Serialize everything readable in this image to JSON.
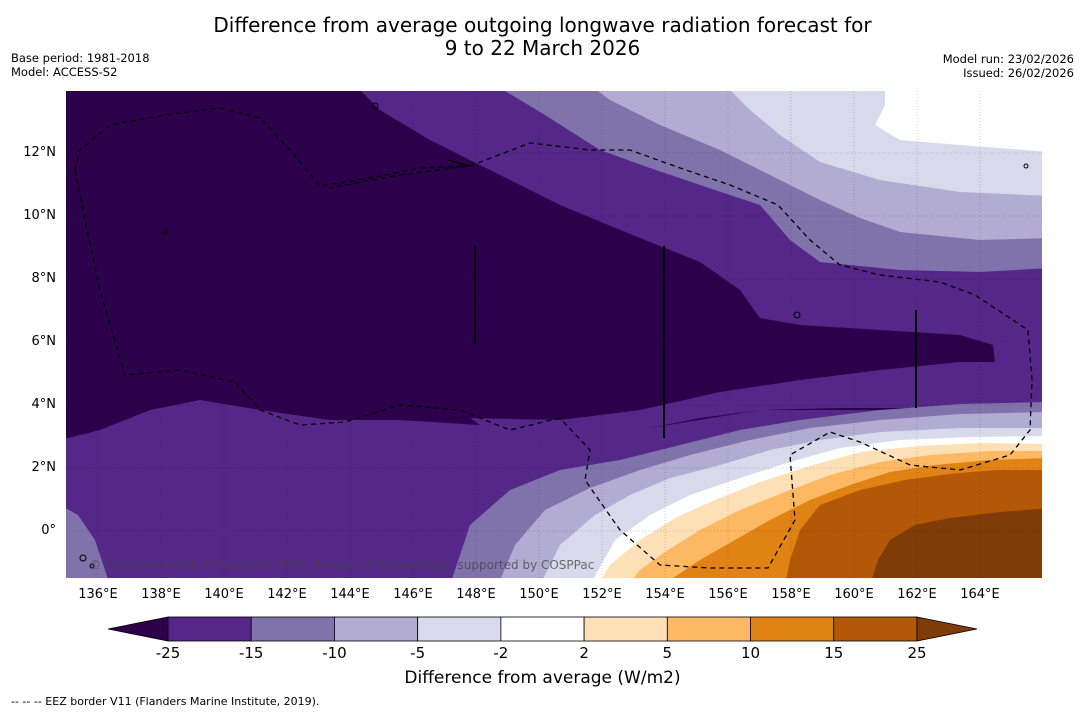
{
  "title": {
    "line1": "Difference from average outgoing longwave radiation forecast for",
    "line2": "9 to 22 March 2026"
  },
  "meta_left": {
    "base_period": "Base period: 1981-2018",
    "model": "Model: ACCESS-S2"
  },
  "meta_right": {
    "model_run": "Model run: 23/02/2026",
    "issued": "Issued: 26/02/2026"
  },
  "latitude_labels": [
    "12°N",
    "10°N",
    "8°N",
    "6°N",
    "4°N",
    "2°N",
    "0°"
  ],
  "longitude_labels": [
    "136°E",
    "138°E",
    "140°E",
    "142°E",
    "144°E",
    "146°E",
    "148°E",
    "150°E",
    "152°E",
    "154°E",
    "156°E",
    "158°E",
    "160°E",
    "162°E",
    "164°E"
  ],
  "copyright": "© Commonwealth of Australia 2026, Bureau of Meteorology, supported by COSPPac",
  "colorbar": {
    "title": "Difference from average (W/m2)",
    "tick_labels": [
      "-25",
      "-15",
      "-10",
      "-5",
      "-2",
      "2",
      "5",
      "10",
      "15",
      "25"
    ],
    "colors": [
      "#2d004b",
      "#542788",
      "#8073ac",
      "#b2abd2",
      "#d8daeb",
      "#ffffff",
      "#fee0b6",
      "#fdb863",
      "#e08214",
      "#b35806",
      "#7f3b08"
    ]
  },
  "footnote": "--  --  -- EEZ border V11 (Flanders Marine Institute, 2019)."
}
